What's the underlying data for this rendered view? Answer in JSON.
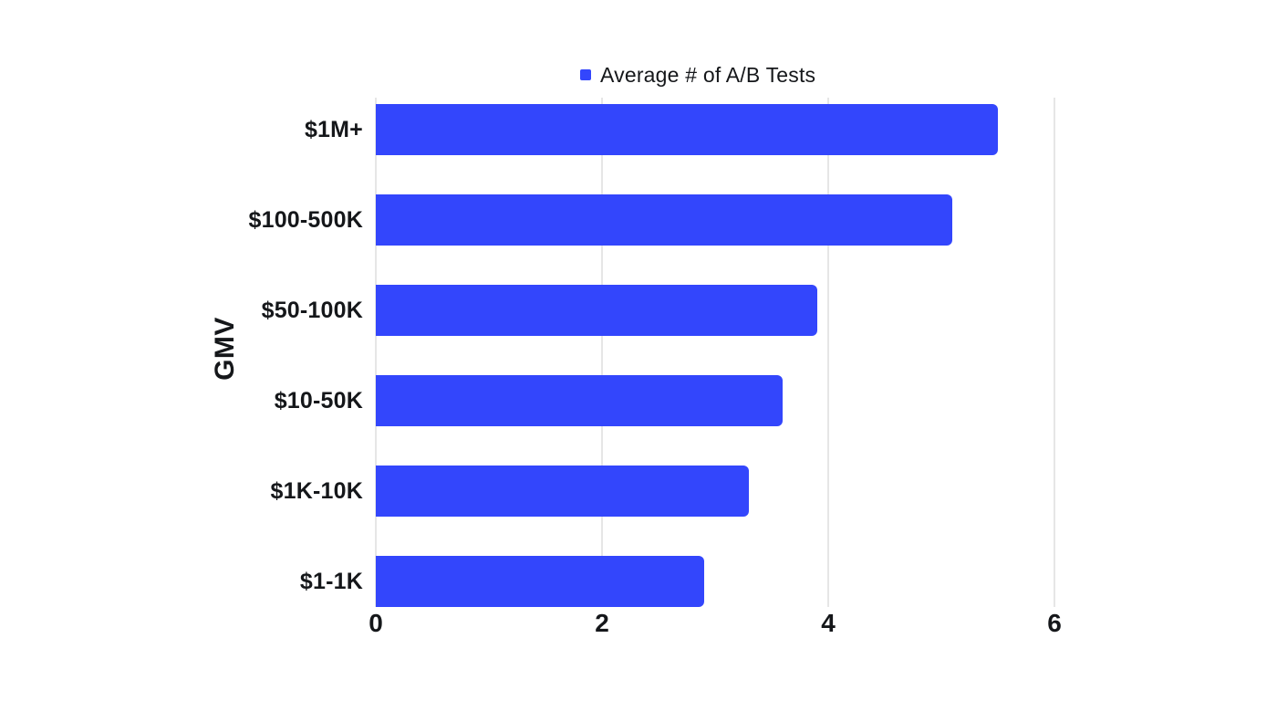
{
  "chart_data": {
    "type": "bar",
    "orientation": "horizontal",
    "title": "",
    "legend_position": "top",
    "categories": [
      "$1M+",
      "$100-500K",
      "$50-100K",
      "$10-50K",
      "$1K-10K",
      "$1-1K"
    ],
    "series": [
      {
        "name": "Average # of A/B Tests",
        "values": [
          5.5,
          5.1,
          3.9,
          3.6,
          3.3,
          2.9
        ]
      }
    ],
    "xlabel": "",
    "ylabel": "GMV",
    "xlim": [
      0,
      6.6
    ],
    "x_ticks": [
      0,
      2,
      4,
      6
    ],
    "grid": "vertical-only",
    "colors": {
      "bar": "#3346FC",
      "gridline": "#e6e6e6",
      "text": "#15171a",
      "background": "#ffffff"
    }
  }
}
